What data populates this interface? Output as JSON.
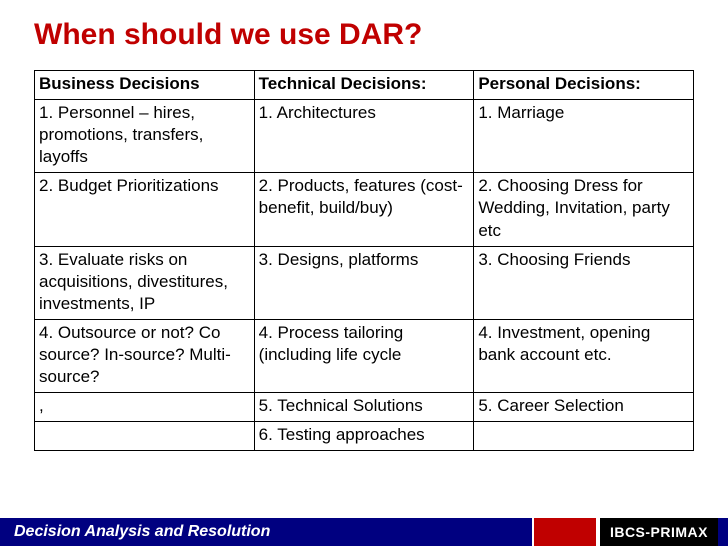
{
  "slide": {
    "title": "When should we use DAR?",
    "title_color": "#c00000",
    "title_fontsize": 30,
    "background_color": "#ffffff"
  },
  "table": {
    "type": "table",
    "border_color": "#000000",
    "text_color": "#000000",
    "cell_fontsize": 17,
    "columns": [
      "Business Decisions",
      "Technical Decisions:",
      "Personal Decisions:"
    ],
    "rows": [
      [
        "1. Personnel – hires, promotions, transfers, layoffs",
        "1. Architectures",
        "1. Marriage"
      ],
      [
        "2. Budget Prioritizations",
        "2. Products, features (cost-benefit, build/buy)",
        "2. Choosing Dress for Wedding, Invitation, party etc"
      ],
      [
        "3. Evaluate risks on acquisitions, divestitures, investments, IP",
        "3. Designs, platforms",
        "3. Choosing Friends"
      ],
      [
        "4. Outsource or not? Co source? In-source? Multi-source?",
        "4. Process tailoring (including life cycle",
        "4. Investment, opening bank account etc."
      ],
      [
        ",",
        "5. Technical Solutions",
        "5. Career Selection"
      ],
      [
        "",
        "6. Testing approaches",
        ""
      ]
    ]
  },
  "footer": {
    "background_color": "#000080",
    "left_text": "Decision Analysis and Resolution",
    "left_color": "#ffffff",
    "accent_color": "#c00000",
    "brand_text": "IBCS-PRIMAX",
    "brand_bg": "#000000",
    "brand_color": "#ffffff"
  }
}
